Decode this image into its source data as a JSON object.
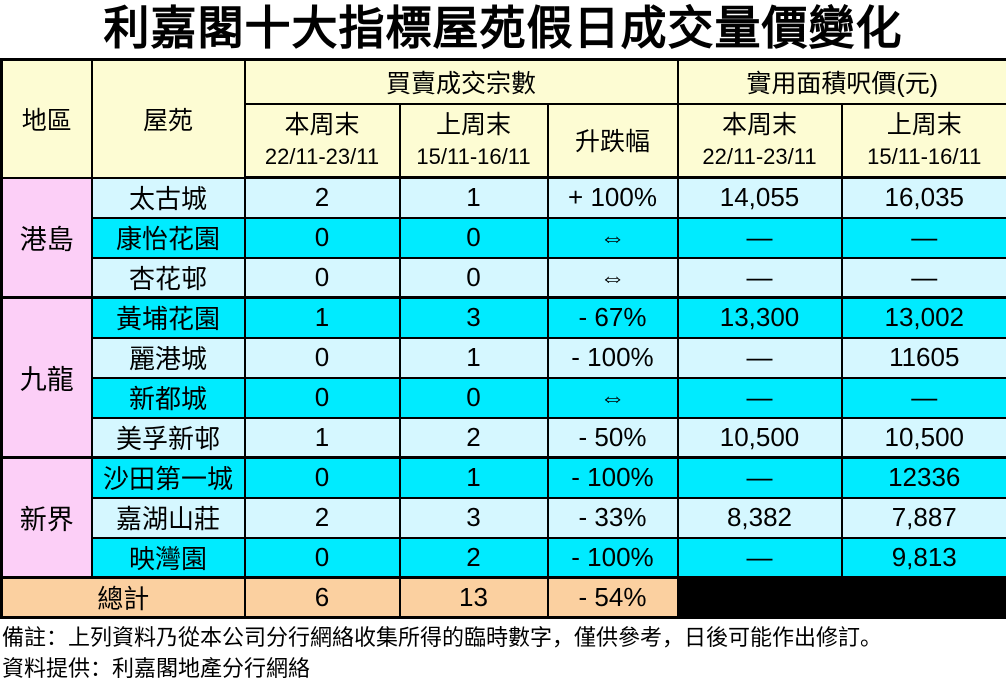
{
  "title": "利嘉閣十大指標屋苑假日成交量價變化",
  "table": {
    "headers": {
      "region": "地區",
      "estate": "屋苑",
      "transactions_group": "買賣成交宗數",
      "price_group": "實用面積呎價(元)",
      "this_weekend": "本周末",
      "this_weekend_dates": "22/11-23/11",
      "last_weekend": "上周末",
      "last_weekend_dates": "15/11-16/11",
      "change": "升跌幅"
    },
    "regions": [
      {
        "name": "港島",
        "row_count": 3
      },
      {
        "name": "九龍",
        "row_count": 4
      },
      {
        "name": "新界",
        "row_count": 3
      }
    ],
    "rows": [
      {
        "estate": "太古城",
        "txn_this": "2",
        "txn_last": "1",
        "change": "+ 100%",
        "price_this": "14,055",
        "price_last": "16,035"
      },
      {
        "estate": "康怡花園",
        "txn_this": "0",
        "txn_last": "0",
        "change": "⇔",
        "price_this": "—",
        "price_last": "—"
      },
      {
        "estate": "杏花邨",
        "txn_this": "0",
        "txn_last": "0",
        "change": "⇔",
        "price_this": "—",
        "price_last": "—"
      },
      {
        "estate": "黃埔花園",
        "txn_this": "1",
        "txn_last": "3",
        "change": "- 67%",
        "price_this": "13,300",
        "price_last": "13,002"
      },
      {
        "estate": "麗港城",
        "txn_this": "0",
        "txn_last": "1",
        "change": "- 100%",
        "price_this": "—",
        "price_last": "11605"
      },
      {
        "estate": "新都城",
        "txn_this": "0",
        "txn_last": "0",
        "change": "⇔",
        "price_this": "—",
        "price_last": "—"
      },
      {
        "estate": "美孚新邨",
        "txn_this": "1",
        "txn_last": "2",
        "change": "- 50%",
        "price_this": "10,500",
        "price_last": "10,500"
      },
      {
        "estate": "沙田第一城",
        "txn_this": "0",
        "txn_last": "1",
        "change": "- 100%",
        "price_this": "—",
        "price_last": "12336"
      },
      {
        "estate": "嘉湖山莊",
        "txn_this": "2",
        "txn_last": "3",
        "change": "- 33%",
        "price_this": "8,382",
        "price_last": "7,887"
      },
      {
        "estate": "映灣園",
        "txn_this": "0",
        "txn_last": "2",
        "change": "- 100%",
        "price_this": "—",
        "price_last": "9,813"
      }
    ],
    "total": {
      "label": "總計",
      "txn_this": "6",
      "txn_last": "13",
      "change": "- 54%"
    }
  },
  "footnotes": [
    "備註：上列資料乃從本公司分行網絡收集所得的臨時數字，僅供參考，日後可能作出修訂。",
    "資料提供：利嘉閣地產分行網絡"
  ],
  "colors": {
    "header-bg": "#FDFCD3",
    "region-bg": "#FCCFF7",
    "row-light-bg": "#D5F7FF",
    "row-bright-bg": "#00EBFF",
    "total-bg": "#FBD0A0",
    "blackout-bg": "#000000",
    "border-color": "#000000",
    "text-color": "#000000"
  }
}
